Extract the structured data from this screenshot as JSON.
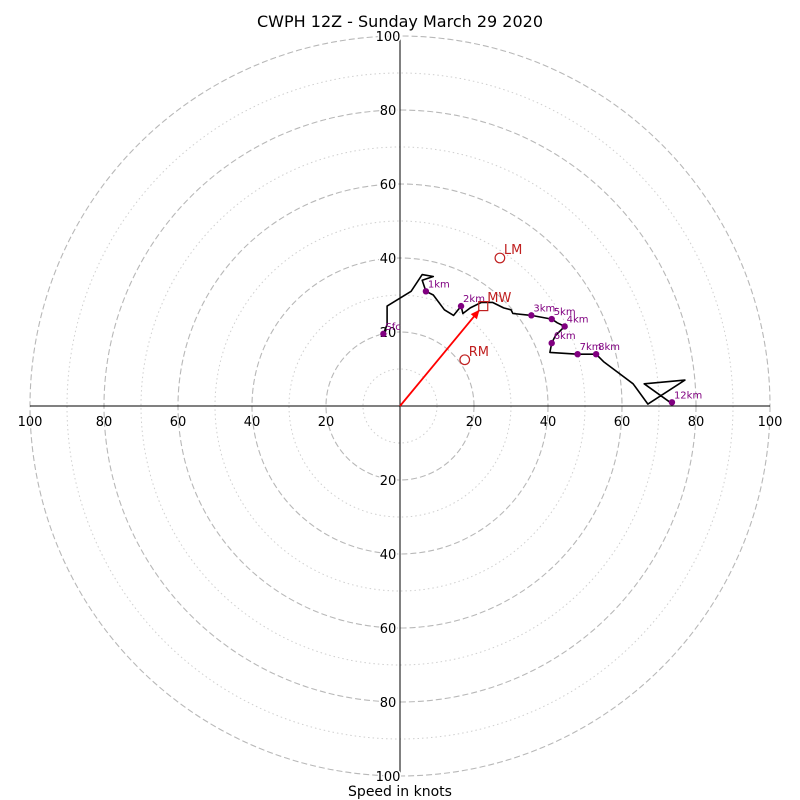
{
  "chart_data": {
    "type": "hodograph",
    "title": "CWPH 12Z - Sunday March 29 2020",
    "xlabel": "Speed in knots",
    "speed_max": 100,
    "major_rings": [
      20,
      40,
      60,
      80,
      100
    ],
    "minor_rings": [
      10,
      30,
      50,
      70,
      90
    ],
    "tick_values": [
      100,
      80,
      60,
      40,
      20,
      0,
      20,
      40,
      60,
      80,
      100
    ],
    "tick_labels": {
      "x": [
        "100",
        "80",
        "60",
        "40",
        "20",
        "20",
        "40",
        "60",
        "80",
        "100"
      ],
      "y": [
        "100",
        "80",
        "60",
        "40",
        "20",
        "20",
        "40",
        "60",
        "80",
        "100"
      ]
    },
    "grid": true,
    "wind_trace": [
      [
        -4.5,
        19.5
      ],
      [
        -3.5,
        22
      ],
      [
        -3.5,
        27
      ],
      [
        3,
        31
      ],
      [
        6,
        35.5
      ],
      [
        9,
        35
      ],
      [
        6,
        34
      ],
      [
        7,
        31
      ],
      [
        9,
        30
      ],
      [
        12,
        26
      ],
      [
        14.5,
        24.5
      ],
      [
        16.5,
        27
      ],
      [
        17,
        25
      ],
      [
        19,
        26.5
      ],
      [
        22,
        28
      ],
      [
        25,
        28
      ],
      [
        28,
        26.5
      ],
      [
        30,
        26
      ],
      [
        30.5,
        25
      ],
      [
        35.5,
        24.5
      ],
      [
        41,
        23.5
      ],
      [
        42.5,
        22.5
      ],
      [
        44.5,
        21.5
      ],
      [
        42,
        19
      ],
      [
        41,
        17
      ],
      [
        40.5,
        14.5
      ],
      [
        48,
        14
      ],
      [
        53,
        14
      ],
      [
        55,
        12
      ],
      [
        63,
        6
      ],
      [
        67,
        0.5
      ],
      [
        77,
        7
      ],
      [
        66,
        6
      ],
      [
        73,
        1
      ]
    ],
    "height_markers": [
      {
        "label": "Sfc",
        "x": -4.5,
        "y": 19.5
      },
      {
        "label": "1km",
        "x": 7,
        "y": 31
      },
      {
        "label": "2km",
        "x": 16.5,
        "y": 27
      },
      {
        "label": "3km",
        "x": 35.5,
        "y": 24.5
      },
      {
        "label": "5km",
        "x": 41,
        "y": 23.5
      },
      {
        "label": "4km",
        "x": 44.5,
        "y": 21.5
      },
      {
        "label": "6km",
        "x": 41,
        "y": 17
      },
      {
        "label": "7km",
        "x": 48,
        "y": 14
      },
      {
        "label": "8km",
        "x": 53,
        "y": 14
      },
      {
        "label": "12km",
        "x": 73.5,
        "y": 1
      }
    ],
    "storm_motions": [
      {
        "label": "LM",
        "marker": "circle",
        "x": 27,
        "y": 40
      },
      {
        "label": "MW",
        "marker": "square",
        "x": 22.5,
        "y": 27
      },
      {
        "label": "RM",
        "marker": "circle",
        "x": 17.5,
        "y": 12.5
      }
    ],
    "shear_arrow": {
      "from": [
        0,
        0
      ],
      "to": [
        21.5,
        26
      ]
    },
    "colors": {
      "trace": "#000000",
      "markers": "#800080",
      "storm_motion": "#c02020",
      "arrow": "#ff0000",
      "ring": "#b8b8b8",
      "axis": "#000000"
    }
  }
}
